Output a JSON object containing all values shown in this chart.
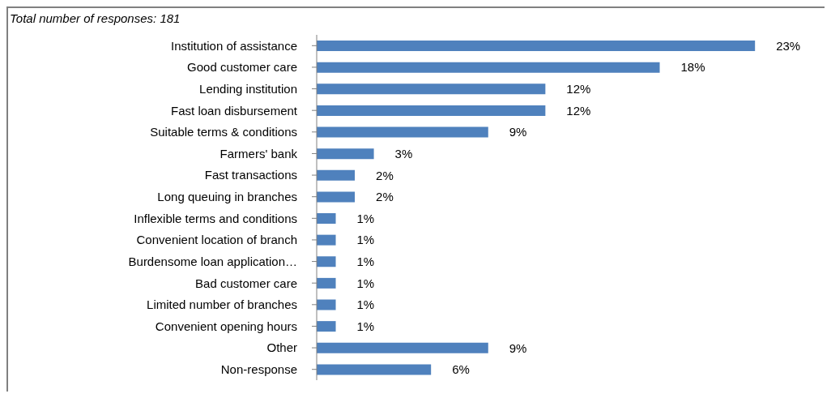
{
  "chart_data": {
    "type": "bar",
    "orientation": "horizontal",
    "subtitle": "Total number of responses: 181",
    "categories": [
      "Institution of assistance",
      "Good customer care",
      "Lending institution",
      "Fast loan disbursement",
      "Suitable terms & conditions",
      "Farmers' bank",
      "Fast transactions",
      "Long queuing in branches",
      "Inflexible terms and conditions",
      "Convenient location of branch",
      "Burdensome loan application…",
      "Bad customer care",
      "Limited number of branches",
      "Convenient opening hours",
      "Other",
      "Non-response"
    ],
    "values": [
      23,
      18,
      12,
      12,
      9,
      3,
      2,
      2,
      1,
      1,
      1,
      1,
      1,
      1,
      9,
      6
    ],
    "value_labels": [
      "23%",
      "18%",
      "12%",
      "12%",
      "9%",
      "3%",
      "2%",
      "2%",
      "1%",
      "1%",
      "1%",
      "1%",
      "1%",
      "1%",
      "9%",
      "6%"
    ],
    "color": "#4f81bd",
    "grid": false,
    "legend": false
  }
}
